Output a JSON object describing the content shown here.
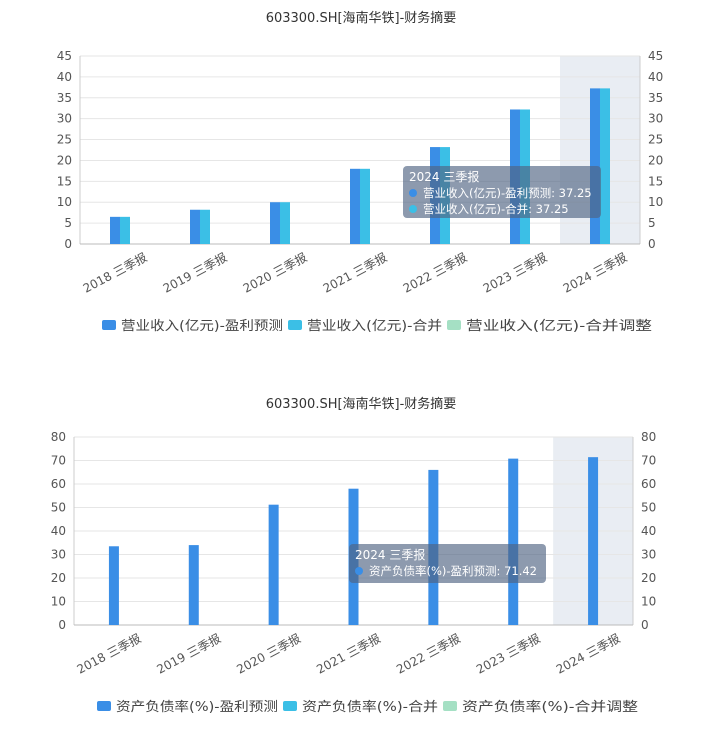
{
  "chart_data": [
    {
      "type": "bar",
      "title": "603300.SH[海南华铁]-财务摘要",
      "categories": [
        "2018 三季报",
        "2019 三季报",
        "2020 三季报",
        "2021 三季报",
        "2022 三季报",
        "2023 三季报",
        "2024 三季报"
      ],
      "ylim": [
        0,
        45
      ],
      "yticks": [
        0,
        5,
        10,
        15,
        20,
        25,
        30,
        35,
        40,
        45
      ],
      "highlight_category": "2024 三季报",
      "series": [
        {
          "name": "营业收入(亿元)-盈利预测",
          "color": "#3a8ee6",
          "values": [
            6.5,
            8.2,
            10.0,
            18.0,
            23.2,
            32.2,
            37.25
          ]
        },
        {
          "name": "营业收入(亿元)-合并",
          "color": "#3bbfe6",
          "values": [
            6.5,
            8.2,
            10.0,
            18.0,
            23.2,
            32.2,
            37.25
          ]
        },
        {
          "name": "营业收入(亿元)-合并调整",
          "color": "#a5e0c4",
          "values": [
            null,
            null,
            null,
            null,
            null,
            null,
            null
          ]
        }
      ],
      "tooltip": {
        "title": "2024 三季报",
        "rows": [
          {
            "label": "营业收入(亿元)-盈利预测: 37.25",
            "color": "#3a8ee6"
          },
          {
            "label": "营业收入(亿元)-合并: 37.25",
            "color": "#3bbfe6"
          }
        ]
      }
    },
    {
      "type": "bar",
      "title": "603300.SH[海南华铁]-财务摘要",
      "categories": [
        "2018 三季报",
        "2019 三季报",
        "2020 三季报",
        "2021 三季报",
        "2022 三季报",
        "2023 三季报",
        "2024 三季报"
      ],
      "ylim": [
        0,
        80
      ],
      "yticks": [
        0,
        10,
        20,
        30,
        40,
        50,
        60,
        70,
        80
      ],
      "highlight_category": "2024 三季报",
      "series": [
        {
          "name": "资产负债率(%)-盈利预测",
          "color": "#3a8ee6",
          "values": [
            33.5,
            34.0,
            51.2,
            58.0,
            66.0,
            70.8,
            71.42
          ]
        },
        {
          "name": "资产负债率(%)-合并",
          "color": "#3bbfe6",
          "values": [
            null,
            null,
            null,
            null,
            null,
            null,
            null
          ]
        },
        {
          "name": "资产负债率(%)-合并调整",
          "color": "#a5e0c4",
          "values": [
            null,
            null,
            null,
            null,
            null,
            null,
            null
          ]
        }
      ],
      "tooltip": {
        "title": "2024 三季报",
        "rows": [
          {
            "label": "资产负债率(%)-盈利预测: 71.42",
            "color": "#3a8ee6"
          }
        ]
      }
    }
  ]
}
